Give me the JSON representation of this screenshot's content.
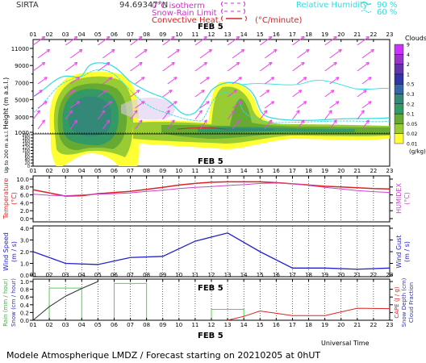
{
  "header": {
    "site": "SIRTA",
    "coords": "94.69347°N",
    "legend_iso": "0°C isotherm",
    "legend_snow": "Snow-Rain Limit",
    "legend_conv": "Convective Heat.",
    "legend_conv_unit": "(°C/minute)",
    "legend_rh_label": "Relative Humidity",
    "legend_rh_90": "90 %",
    "legend_rh_60": "60 %"
  },
  "footer": {
    "universal_time": "Universal Time",
    "forecast": "Modele Atmospherique LMDZ / Forecast starting on 20210205 at 0hUT"
  },
  "colors": {
    "cloud_scale": [
      "#ffff33",
      "#99cc33",
      "#66aa33",
      "#339966",
      "#338877",
      "#3366aa",
      "#3333aa",
      "#6633aa",
      "#9933cc",
      "#cc33ff"
    ],
    "temperature": "#dd2222",
    "humidex": "#cc44cc",
    "wind": "#2222cc",
    "rain": "#333333",
    "snow": "#44dd44",
    "cape": "#dd2222",
    "rh": "#33dddd",
    "wind_arrow": "#ee44ee"
  },
  "chart_data": [
    {
      "type": "heatmap",
      "title": "FEB  5",
      "x_label_top": "Up to 200 m a.s.l.",
      "ylabel": "Height   (m a.s.l.)",
      "hours": [
        "01",
        "02",
        "03",
        "04",
        "05",
        "06",
        "07",
        "08",
        "09",
        "10",
        "11",
        "12",
        "13",
        "14",
        "15",
        "16",
        "17",
        "18",
        "19",
        "20",
        "21",
        "22",
        "23"
      ],
      "yticks_high": [
        "1000",
        "3000",
        "5000",
        "7000",
        "9000",
        "11000"
      ],
      "yticks_high_minor": [
        "2000",
        "4000",
        "6000",
        "8000",
        "10000"
      ],
      "yticks_low": [
        "200",
        "180",
        "160",
        "140",
        "120",
        "100",
        "80",
        "60",
        "40",
        "20",
        "0"
      ],
      "legend_title": "Clouds",
      "legend_unit": "(g/kg)",
      "legend_levels": [
        "0.01",
        "0.02",
        "0.05",
        "0.1",
        "0.2",
        "0.3",
        "0.5",
        "1",
        "2",
        "4",
        "9"
      ]
    },
    {
      "type": "line",
      "title": "FEB  5",
      "ylabel": "Temperature",
      "ylabel_unit": "(°C)",
      "ylabel_right": "HUMIDEX",
      "ylabel_right_unit": "(°C)",
      "ylim": [
        0,
        10
      ],
      "yticks": [
        "0.0",
        "2.0",
        "4.0",
        "6.0",
        "8.0",
        "10.0"
      ],
      "x": [
        1,
        2,
        3,
        4,
        5,
        6,
        7,
        8,
        9,
        10,
        11,
        12,
        13,
        14,
        15,
        16,
        17,
        18,
        19,
        20,
        21,
        22,
        23
      ],
      "series": [
        {
          "name": "Temperature",
          "values": [
            7.3,
            6.5,
            5.7,
            5.8,
            6.3,
            6.6,
            6.9,
            7.4,
            7.9,
            8.5,
            8.9,
            9.2,
            9.3,
            9.3,
            9.3,
            9.1,
            8.8,
            8.5,
            8.2,
            8.0,
            7.8,
            7.6,
            7.5
          ]
        },
        {
          "name": "HUMIDEX",
          "values": [
            6.2,
            5.9,
            5.8,
            6.0,
            6.2,
            6.3,
            6.5,
            6.9,
            7.2,
            7.6,
            7.9,
            8.1,
            8.4,
            8.6,
            8.9,
            9.0,
            8.8,
            8.4,
            7.9,
            7.5,
            7.1,
            6.8,
            6.6
          ]
        }
      ]
    },
    {
      "type": "line",
      "title": "",
      "ylabel": "Wind Speed",
      "ylabel_unit": "(m / s)",
      "ylabel_right": "Wind Gust",
      "ylabel_right_unit": "(m / s)",
      "ylim": [
        0,
        4
      ],
      "yticks": [
        "0.0",
        "1.0",
        "2.0",
        "3.0",
        "4.0"
      ],
      "x": [
        1,
        3,
        5,
        7,
        9,
        11,
        13,
        15,
        17,
        19,
        21,
        23
      ],
      "series": [
        {
          "name": "Wind Speed",
          "values": [
            2.0,
            1.0,
            0.9,
            1.5,
            1.6,
            2.9,
            3.6,
            2.0,
            0.6,
            0.6,
            0.5,
            0.6
          ]
        }
      ]
    },
    {
      "type": "line",
      "title": "FEB  5",
      "ylabel": "Rain (mm / hour)",
      "ylabel2": "Snow (cm / hour)",
      "ylabel_right": "CAPE (J / g)",
      "ylabel_right2": "Snow Depth (cm)",
      "ylabel_right3": "Cloud Fraction",
      "ylim": [
        0,
        1
      ],
      "yticks": [
        "0.0",
        "0.2",
        "0.4",
        "0.6",
        "0.8",
        "1.0"
      ],
      "x": [
        1,
        2,
        3,
        4,
        5
      ],
      "rain_values": [
        0.0,
        0.35,
        0.62,
        0.82,
        1.0
      ],
      "cloud_fraction_bars": [
        {
          "from": 2,
          "to": 4,
          "value": 0.83
        },
        {
          "from": 6,
          "to": 8,
          "value": 0.95
        },
        {
          "from": 12,
          "to": 14,
          "value": 0.28
        }
      ],
      "cape_x": [
        13,
        14,
        15,
        17,
        19,
        21,
        23
      ],
      "cape_values": [
        0.0,
        0.1,
        0.24,
        0.12,
        0.12,
        0.31,
        0.3
      ]
    }
  ]
}
